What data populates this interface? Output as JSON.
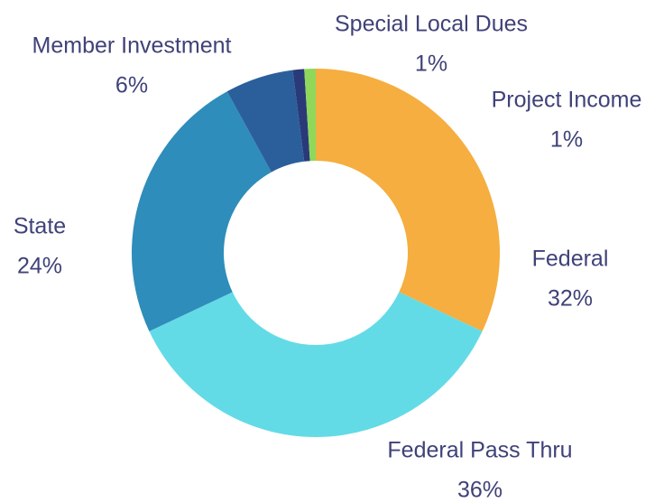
{
  "chart_data": {
    "type": "donut",
    "categories": [
      "Federal",
      "Federal Pass Thru",
      "State",
      "Member Investment",
      "Project Income",
      "Special Local Dues"
    ],
    "values": [
      32,
      36,
      24,
      6,
      1,
      1
    ],
    "value_labels": [
      "32%",
      "36%",
      "24%",
      "6%",
      "1%",
      "1%"
    ],
    "colors": [
      "#f5ae3f",
      "#63dbe6",
      "#2e8dba",
      "#2b5f9b",
      "#2a3a78",
      "#8fd85a"
    ]
  }
}
